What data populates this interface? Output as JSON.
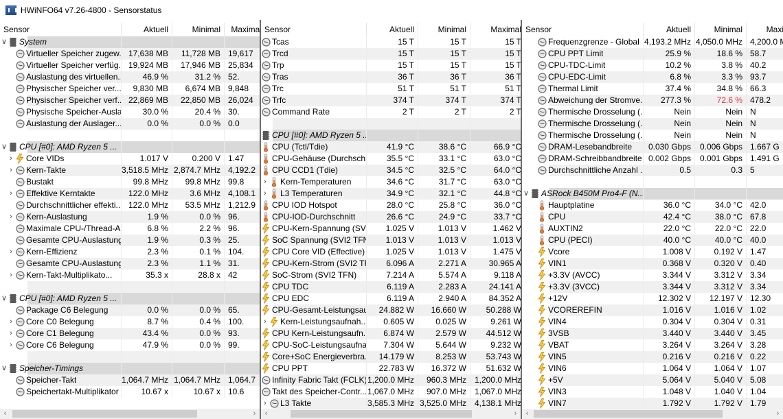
{
  "window": {
    "title": "HWiNFO64 v7.26-4800 - Sensorstatus"
  },
  "colors": {
    "row_alt": "#f0f0f0",
    "group_bg": "#d9d9d9",
    "alert_red": "#e0303b"
  },
  "panes": [
    {
      "headers": [
        "Sensor",
        "Aktuell",
        "Minimal",
        "Maximal"
      ],
      "rows": [
        {
          "t": "group",
          "icon": "chip-icon",
          "label": "System",
          "arrow": "v"
        },
        {
          "icon": "clock-icon",
          "label": "Virtueller Speicher zugew...",
          "v": [
            "17,638 MB",
            "11,728 MB",
            "19,617"
          ]
        },
        {
          "icon": "clock-icon",
          "label": "Virtueller Speicher verfüg...",
          "v": [
            "19,924 MB",
            "17,946 MB",
            "25,834"
          ]
        },
        {
          "icon": "clock-icon",
          "label": "Auslastung des virtuellen...",
          "v": [
            "46.9 %",
            "31.2 %",
            "52."
          ]
        },
        {
          "icon": "clock-icon",
          "label": "Physischer Speicher ver...",
          "v": [
            "9,830 MB",
            "6,674 MB",
            "9,848"
          ]
        },
        {
          "icon": "clock-icon",
          "label": "Physischer Speicher verf...",
          "v": [
            "22,869 MB",
            "22,850 MB",
            "26,024"
          ]
        },
        {
          "icon": "clock-icon",
          "label": "Physische Speicher-Ausla...",
          "v": [
            "30.0 %",
            "20.4 %",
            "30."
          ]
        },
        {
          "icon": "clock-icon",
          "label": "Auslastung der Auslager...",
          "v": [
            "0.0 %",
            "0.0 %",
            "0.0"
          ]
        },
        {
          "t": "blank"
        },
        {
          "t": "group",
          "icon": "chip-icon",
          "label": "CPU [#0]: AMD Ryzen 5 ...",
          "arrow": "v"
        },
        {
          "sub": true,
          "icon": "bolt-icon",
          "label": "Core VIDs",
          "v": [
            "1.017 V",
            "0.200 V",
            "1.47"
          ]
        },
        {
          "sub": true,
          "icon": "clock-icon",
          "label": "Kern-Takte",
          "v": [
            "3,518.5 MHz",
            "2,874.7 MHz",
            "4,192.2"
          ]
        },
        {
          "icon": "clock-icon",
          "label": "Bustakt",
          "v": [
            "99.8 MHz",
            "99.8 MHz",
            "99.8"
          ]
        },
        {
          "sub": true,
          "icon": "clock-icon",
          "label": "Effektive Kerntakte",
          "v": [
            "122.0 MHz",
            "3.6 MHz",
            "4,108.1"
          ]
        },
        {
          "icon": "clock-icon",
          "label": "Durchschnittlicher effekti...",
          "v": [
            "122.0 MHz",
            "53.5 MHz",
            "1,212.9"
          ]
        },
        {
          "sub": true,
          "icon": "clock-icon",
          "label": "Kern-Auslastung",
          "v": [
            "1.9 %",
            "0.0 %",
            "96."
          ]
        },
        {
          "icon": "clock-icon",
          "label": "Maximale CPU-/Thread-A...",
          "v": [
            "6.8 %",
            "2.2 %",
            "96."
          ]
        },
        {
          "icon": "clock-icon",
          "label": "Gesamte CPU-Auslastung",
          "v": [
            "1.9 %",
            "0.3 %",
            "25."
          ]
        },
        {
          "sub": true,
          "icon": "clock-icon",
          "label": "Kern-Effizienz",
          "v": [
            "2.3 %",
            "0.1 %",
            "104."
          ]
        },
        {
          "icon": "clock-icon",
          "label": "Gesamte CPU-Auslastung",
          "v": [
            "2.3 %",
            "1.1 %",
            "31."
          ]
        },
        {
          "sub": true,
          "icon": "clock-icon",
          "label": "Kern-Takt-Multiplikato...",
          "v": [
            "35.3 x",
            "28.8 x",
            "42"
          ]
        },
        {
          "t": "blank"
        },
        {
          "t": "group",
          "icon": "chip-icon",
          "label": "CPU [#0]: AMD Ryzen 5 ...",
          "arrow": "v"
        },
        {
          "icon": "clock-icon",
          "label": "Package C6 Belegung",
          "v": [
            "0.0 %",
            "0.0 %",
            "65."
          ]
        },
        {
          "sub": true,
          "icon": "clock-icon",
          "label": "Core C0 Belegung",
          "v": [
            "8.7 %",
            "0.4 %",
            "100."
          ]
        },
        {
          "sub": true,
          "icon": "clock-icon",
          "label": "Core C1 Belegung",
          "v": [
            "43.4 %",
            "0.0 %",
            "93."
          ]
        },
        {
          "sub": true,
          "icon": "clock-icon",
          "label": "Core C6 Belegung",
          "v": [
            "47.9 %",
            "0.0 %",
            "99."
          ]
        },
        {
          "t": "blank"
        },
        {
          "t": "group",
          "icon": "chip-icon",
          "label": "Speicher-Timings",
          "arrow": "v"
        },
        {
          "icon": "clock-icon",
          "label": "Speicher-Takt",
          "v": [
            "1,064.7 MHz",
            "1,064.7 MHz",
            "1,064.7"
          ]
        },
        {
          "icon": "clock-icon",
          "label": "Speichertakt-Multiplikator",
          "v": [
            "10.67 x",
            "10.67 x",
            "10.6"
          ]
        }
      ]
    },
    {
      "headers": [
        "Sensor",
        "Aktuell",
        "Minimal",
        "Maximal"
      ],
      "rows": [
        {
          "icon": "clock-icon",
          "label": "Tcas",
          "v": [
            "15 T",
            "15 T",
            "15 T"
          ]
        },
        {
          "icon": "clock-icon",
          "label": "Trcd",
          "v": [
            "15 T",
            "15 T",
            "15 T"
          ]
        },
        {
          "icon": "clock-icon",
          "label": "Trp",
          "v": [
            "15 T",
            "15 T",
            "15 T"
          ]
        },
        {
          "icon": "clock-icon",
          "label": "Tras",
          "v": [
            "36 T",
            "36 T",
            "36 T"
          ]
        },
        {
          "icon": "clock-icon",
          "label": "Trc",
          "v": [
            "51 T",
            "51 T",
            "51 T"
          ]
        },
        {
          "icon": "clock-icon",
          "label": "Trfc",
          "v": [
            "374 T",
            "374 T",
            "374 T"
          ]
        },
        {
          "icon": "clock-icon",
          "label": "Command Rate",
          "v": [
            "2 T",
            "2 T",
            "2 T"
          ]
        },
        {
          "t": "blank"
        },
        {
          "t": "group",
          "icon": "chip-icon",
          "label": "CPU [#0]: AMD Ryzen 5 ..."
        },
        {
          "icon": "thermometer-icon",
          "label": "CPU (Tctl/Tdie)",
          "v": [
            "41.9 °C",
            "38.6 °C",
            "66.9 °C"
          ]
        },
        {
          "icon": "thermometer-icon",
          "label": "CPU-Gehäuse (Durchsch...",
          "v": [
            "35.5 °C",
            "33.1 °C",
            "63.0 °C"
          ]
        },
        {
          "icon": "thermometer-icon",
          "label": "CPU CCD1 (Tdie)",
          "v": [
            "34.5 °C",
            "32.5 °C",
            "64.0 °C"
          ]
        },
        {
          "sub": true,
          "icon": "thermometer-icon",
          "label": "Kern-Temperaturen",
          "v": [
            "34.6 °C",
            "31.7 °C",
            "63.0 °C"
          ]
        },
        {
          "sub": true,
          "icon": "thermometer-icon",
          "label": "L3 Temperaturen",
          "v": [
            "34.9 °C",
            "32.1 °C",
            "44.8 °C"
          ]
        },
        {
          "icon": "thermometer-icon",
          "label": "CPU IOD Hotspot",
          "v": [
            "28.0 °C",
            "25.8 °C",
            "36.0 °C"
          ]
        },
        {
          "icon": "thermometer-icon",
          "label": "CPU-IOD-Durchschnitt",
          "v": [
            "26.6 °C",
            "24.9 °C",
            "33.7 °C"
          ]
        },
        {
          "icon": "bolt-icon",
          "label": "CPU-Kern-Spannung (SVI...",
          "v": [
            "1.025 V",
            "1.013 V",
            "1.462 V"
          ]
        },
        {
          "icon": "bolt-icon",
          "label": "SoC Spannung (SVI2 TFN)",
          "v": [
            "1.013 V",
            "1.013 V",
            "1.013 V"
          ]
        },
        {
          "icon": "bolt-icon",
          "label": "CPU Core VID (Effective)",
          "v": [
            "1.025 V",
            "1.013 V",
            "1.475 V"
          ]
        },
        {
          "icon": "bolt-icon",
          "label": "CPU-Kern-Strom (SVI2 TFN)",
          "v": [
            "6.096 A",
            "2.271 A",
            "30.965 A"
          ]
        },
        {
          "icon": "bolt-icon",
          "label": "SoC-Strom (SVI2 TFN)",
          "v": [
            "7.214 A",
            "5.574 A",
            "9.118 A"
          ]
        },
        {
          "icon": "bolt-icon",
          "label": "CPU TDC",
          "v": [
            "6.119 A",
            "2.283 A",
            "24.141 A"
          ]
        },
        {
          "icon": "bolt-icon",
          "label": "CPU EDC",
          "v": [
            "6.119 A",
            "2.940 A",
            "84.352 A"
          ]
        },
        {
          "icon": "bolt-icon",
          "label": "CPU-Gesamt-Leistungsau...",
          "v": [
            "24.882 W",
            "16.660 W",
            "50.288 W"
          ]
        },
        {
          "sub": true,
          "icon": "bolt-icon",
          "label": "Kern-Leistungsaufnah...",
          "v": [
            "0.605 W",
            "0.025 W",
            "9.261 W"
          ]
        },
        {
          "icon": "bolt-icon",
          "label": "CPU Kern-Leistungsaufn...",
          "v": [
            "6.874 W",
            "2.579 W",
            "44.512 W"
          ]
        },
        {
          "icon": "bolt-icon",
          "label": "CPU-SoC-Leistungsaufna...",
          "v": [
            "7.304 W",
            "5.644 W",
            "9.232 W"
          ]
        },
        {
          "icon": "bolt-icon",
          "label": "Core+SoC Energieverbra...",
          "v": [
            "14.179 W",
            "8.253 W",
            "53.743 W"
          ]
        },
        {
          "icon": "bolt-icon",
          "label": "CPU PPT",
          "v": [
            "22.783 W",
            "16.372 W",
            "51.632 W"
          ]
        },
        {
          "icon": "clock-icon",
          "label": "Infinity Fabric Takt (FCLK)",
          "v": [
            "1,200.0 MHz",
            "960.3 MHz",
            "1,200.0 MHz"
          ]
        },
        {
          "icon": "clock-icon",
          "label": "Takt des Speicher-Contr...",
          "v": [
            "1,067.0 MHz",
            "907.0 MHz",
            "1,067.0 MHz"
          ]
        },
        {
          "sub": true,
          "icon": "clock-icon",
          "label": "L3 Takte",
          "v": [
            "3,585.3 MHz",
            "3,525.0 MHz",
            "4,138.1 MHz"
          ]
        }
      ]
    },
    {
      "headers": [
        "Sensor",
        "Aktuell",
        "Minimal",
        "Maxi"
      ],
      "rows": [
        {
          "icon": "clock-icon",
          "label": "Frequenzgrenze - Global",
          "v": [
            "4,193.2 MHz",
            "4,050.0 MHz",
            "4,200.0 M"
          ]
        },
        {
          "icon": "clock-icon",
          "label": "CPU PPT Limit",
          "v": [
            "25.9 %",
            "18.6 %",
            "58.7"
          ]
        },
        {
          "icon": "clock-icon",
          "label": "CPU-TDC-Limit",
          "v": [
            "10.2 %",
            "3.8 %",
            "40.2"
          ]
        },
        {
          "icon": "clock-icon",
          "label": "CPU-EDC-Limit",
          "v": [
            "6.8 %",
            "3.3 %",
            "93.7"
          ]
        },
        {
          "icon": "clock-icon",
          "label": "Thermal Limit",
          "v": [
            "37.4 %",
            "34.8 %",
            "66.3"
          ]
        },
        {
          "icon": "clock-icon",
          "label": "Abweichung der Stromve...",
          "v": [
            "277.3 %",
            "72.6 %",
            "478.2"
          ],
          "red": [
            1
          ]
        },
        {
          "icon": "clock-icon",
          "label": "Thermische Drosselung (...",
          "v": [
            "Nein",
            "Nein",
            "N"
          ]
        },
        {
          "icon": "clock-icon",
          "label": "Thermische Drosselung (...",
          "v": [
            "Nein",
            "Nein",
            "N"
          ]
        },
        {
          "icon": "clock-icon",
          "label": "Thermische Drosselung (...",
          "v": [
            "Nein",
            "Nein",
            "N"
          ]
        },
        {
          "icon": "clock-icon",
          "label": "DRAM-Lesebandbreite",
          "v": [
            "0.030 Gbps",
            "0.006 Gbps",
            "1.667 G"
          ]
        },
        {
          "icon": "clock-icon",
          "label": "DRAM-Schreibbandbreite",
          "v": [
            "0.002 Gbps",
            "0.001 Gbps",
            "1.491 G"
          ]
        },
        {
          "icon": "clock-icon",
          "label": "Durchschnittliche Anzahl ...",
          "v": [
            "0.5",
            "0.3",
            "5"
          ]
        },
        {
          "t": "blank"
        },
        {
          "t": "group",
          "icon": "chip-icon",
          "label": "ASRock B450M Pro4-F (N...",
          "arrow": "v"
        },
        {
          "icon": "thermometer-icon",
          "label": "Hauptplatine",
          "v": [
            "36.0 °C",
            "34.0 °C",
            "42.0"
          ]
        },
        {
          "icon": "thermometer-icon",
          "label": "CPU",
          "v": [
            "42.4 °C",
            "38.0 °C",
            "67.8"
          ]
        },
        {
          "icon": "thermometer-icon",
          "label": "AUXTIN2",
          "v": [
            "22.0 °C",
            "22.0 °C",
            "22.0"
          ]
        },
        {
          "icon": "thermometer-icon",
          "label": "CPU (PECI)",
          "v": [
            "40.0 °C",
            "40.0 °C",
            "40.0"
          ]
        },
        {
          "icon": "bolt-icon",
          "label": "Vcore",
          "v": [
            "1.008 V",
            "0.192 V",
            "1.47"
          ]
        },
        {
          "icon": "bolt-icon",
          "label": "VIN1",
          "v": [
            "0.368 V",
            "0.320 V",
            "0.40"
          ]
        },
        {
          "icon": "bolt-icon",
          "label": "+3.3V (AVCC)",
          "v": [
            "3.344 V",
            "3.312 V",
            "3.34"
          ]
        },
        {
          "icon": "bolt-icon",
          "label": "+3.3V (3VCC)",
          "v": [
            "3.344 V",
            "3.312 V",
            "3.34"
          ]
        },
        {
          "icon": "bolt-icon",
          "label": "+12V",
          "v": [
            "12.302 V",
            "12.197 V",
            "12.30"
          ]
        },
        {
          "icon": "bolt-icon",
          "label": "VCOREREFIN",
          "v": [
            "1.016 V",
            "1.016 V",
            "1.02"
          ]
        },
        {
          "icon": "bolt-icon",
          "label": "VIN4",
          "v": [
            "0.304 V",
            "0.304 V",
            "0.31"
          ]
        },
        {
          "icon": "bolt-icon",
          "label": "3VSB",
          "v": [
            "3.440 V",
            "3.440 V",
            "3.45"
          ]
        },
        {
          "icon": "bolt-icon",
          "label": "VBAT",
          "v": [
            "3.264 V",
            "3.264 V",
            "3.28"
          ]
        },
        {
          "icon": "bolt-icon",
          "label": "VIN5",
          "v": [
            "0.216 V",
            "0.216 V",
            "0.22"
          ]
        },
        {
          "icon": "bolt-icon",
          "label": "VIN6",
          "v": [
            "1.064 V",
            "1.064 V",
            "1.07"
          ]
        },
        {
          "icon": "bolt-icon",
          "label": "+5V",
          "v": [
            "5.064 V",
            "5.040 V",
            "5.08"
          ]
        },
        {
          "icon": "bolt-icon",
          "label": "VIN3",
          "v": [
            "1.048 V",
            "1.040 V",
            "1.04"
          ]
        },
        {
          "icon": "bolt-icon",
          "label": "VIN7",
          "v": [
            "1.792 V",
            "1.792 V",
            "1.79"
          ]
        }
      ]
    }
  ]
}
